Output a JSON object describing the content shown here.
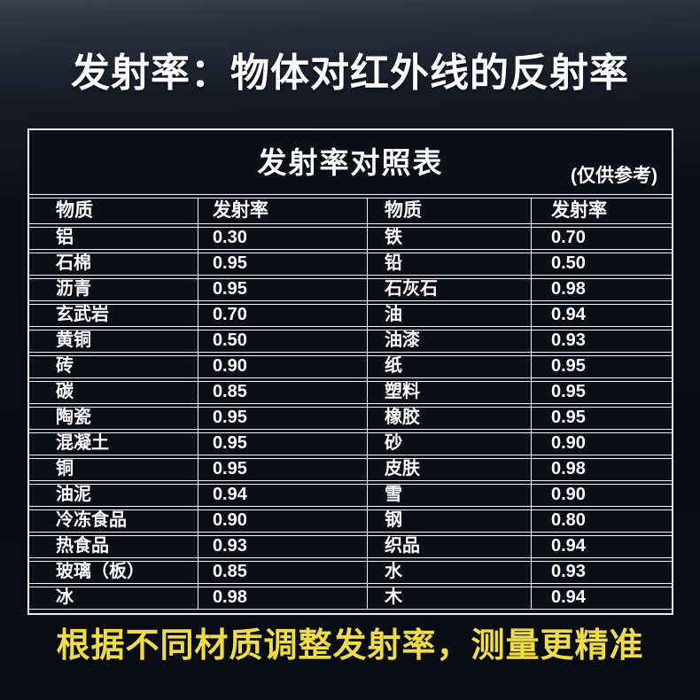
{
  "page": {
    "title": "发射率：物体对红外线的反射率",
    "footer": "根据不同材质调整发射率，测量更精准"
  },
  "card": {
    "title": "发射率对照表",
    "note": "(仅供参考)"
  },
  "table": {
    "columns": [
      "物质",
      "发射率",
      "物质",
      "发射率"
    ],
    "rows": [
      [
        "铝",
        "0.30",
        "铁",
        "0.70"
      ],
      [
        "石棉",
        "0.95",
        "铅",
        "0.50"
      ],
      [
        "沥青",
        "0.95",
        "石灰石",
        "0.98"
      ],
      [
        "玄武岩",
        "0.70",
        "油",
        "0.94"
      ],
      [
        "黄铜",
        "0.50",
        "油漆",
        "0.93"
      ],
      [
        "砖",
        "0.90",
        "纸",
        "0.95"
      ],
      [
        "碳",
        "0.85",
        "塑料",
        "0.95"
      ],
      [
        "陶瓷",
        "0.95",
        "橡胶",
        "0.95"
      ],
      [
        "混凝土",
        "0.95",
        "砂",
        "0.90"
      ],
      [
        "铜",
        "0.95",
        "皮肤",
        "0.98"
      ],
      [
        "油泥",
        "0.94",
        "雪",
        "0.90"
      ],
      [
        "冷冻食品",
        "0.90",
        "钢",
        "0.80"
      ],
      [
        "热食品",
        "0.93",
        "织品",
        "0.94"
      ],
      [
        "玻璃（板）",
        "0.85",
        "水",
        "0.93"
      ],
      [
        "冰",
        "0.98",
        "木",
        "0.94"
      ]
    ]
  },
  "colors": {
    "background": "#0a0c14",
    "table_line": "#eef0f2",
    "accent_yellow": "#f0dc46",
    "text": "#ffffff"
  }
}
